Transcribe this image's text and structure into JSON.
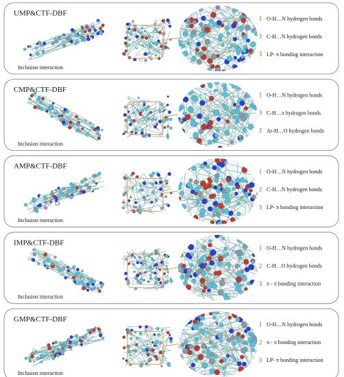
{
  "panels": [
    {
      "title": "UMP&CTF-DBF",
      "caption": "Inclusion interaction",
      "interactions": [
        {
          "rank": "1",
          "text": "O-H…N hydrogen bonds"
        },
        {
          "rank": "3",
          "text": "C-H…N hydrogen bonds"
        },
        {
          "rank": "3",
          "text": "LP- π bonding interaction"
        }
      ]
    },
    {
      "title": "CMP&CTF-DBF",
      "caption": "Inclusion interaction",
      "interactions": [
        {
          "rank": "1",
          "text": "O-H…N hydrogen bonds"
        },
        {
          "rank": "3",
          "text": "C-H…π hydrogen bonds"
        },
        {
          "rank": "3",
          "text": "Ar-H…O hydrogen bonds"
        }
      ]
    },
    {
      "title": "AMP&CTF-DBF",
      "caption": "Inclusion interaction",
      "interactions": [
        {
          "rank": "1",
          "text": "O-H…N hydrogen bonds"
        },
        {
          "rank": "2",
          "text": "C-H…N hydrogen bonds"
        },
        {
          "rank": "3",
          "text": "LP- π bonding interaction"
        }
      ]
    },
    {
      "title": "IMP&CTF-DBF",
      "caption": "Inclusion interaction",
      "interactions": [
        {
          "rank": "1",
          "text": "O-H…N hydrogen bonds"
        },
        {
          "rank": "2",
          "text": "C-H…O hydrogen bonds"
        },
        {
          "rank": "3",
          "text": "π - π bonding interaction"
        }
      ]
    },
    {
      "title": "GMP&CTF-DBF",
      "caption": "Inclusion interaction",
      "interactions": [
        {
          "rank": "1",
          "text": "O-H…N hydrogen bonds"
        },
        {
          "rank": "2",
          "text": "π - π bonding interaction"
        },
        {
          "rank": "3",
          "text": "LP- π bonding interaction"
        }
      ]
    }
  ]
}
